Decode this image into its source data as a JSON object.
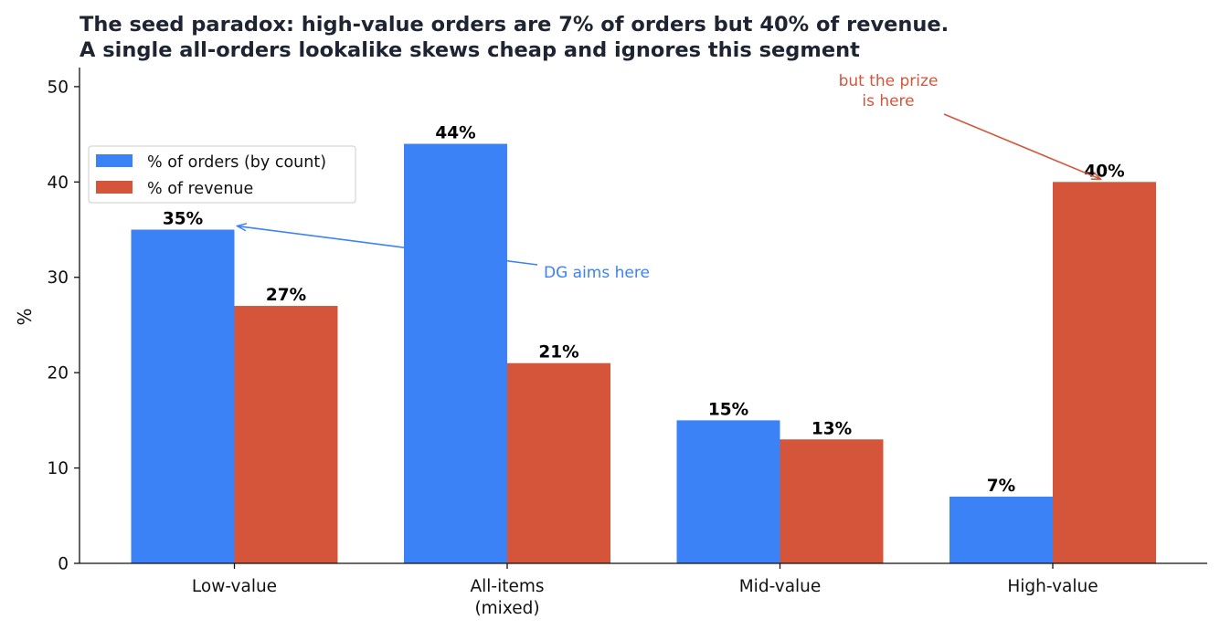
{
  "colors": {
    "orders": "#3b82f6",
    "revenue": "#d4553a",
    "axis": "#111111",
    "title": "#1f2433"
  },
  "chart_data": {
    "type": "bar",
    "title_lines": [
      "The seed paradox: high-value orders are 7% of orders but 40% of revenue.",
      "A single all-orders lookalike skews cheap and ignores this segment"
    ],
    "ylabel": "%",
    "xlabel": "",
    "ylim": [
      0,
      52
    ],
    "yticks": [
      0,
      10,
      20,
      30,
      40,
      50
    ],
    "grid": false,
    "legend_position": "upper-left",
    "categories": [
      "Low-value",
      "All-items\n(mixed)",
      "Mid-value",
      "High-value"
    ],
    "series": [
      {
        "name": "% of orders (by count)",
        "values": [
          35,
          44,
          15,
          7
        ],
        "labels": [
          "35%",
          "44%",
          "15%",
          "7%"
        ],
        "color": "#3b82f6"
      },
      {
        "name": "% of revenue",
        "values": [
          27,
          21,
          13,
          40
        ],
        "labels": [
          "27%",
          "21%",
          "13%",
          "40%"
        ],
        "color": "#d4553a"
      }
    ],
    "annotations": [
      {
        "text": "DG aims here",
        "color": "#3b82f6",
        "target_category": 0,
        "target_series": 0,
        "target_value": 35
      },
      {
        "text": "but the prize\nis here",
        "color": "#d4553a",
        "target_category": 3,
        "target_series": 1,
        "target_value": 40
      }
    ]
  }
}
